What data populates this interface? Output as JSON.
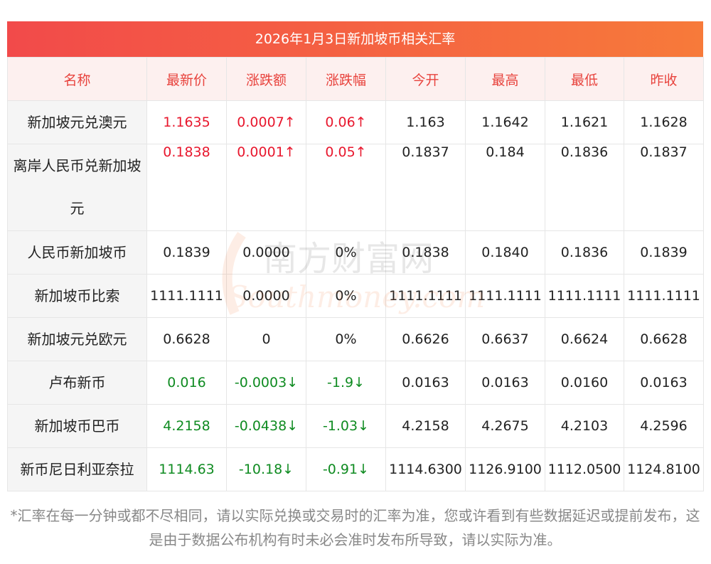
{
  "title": "2026年1月3日新加坡币相关汇率",
  "headers": [
    "名称",
    "最新价",
    "涨跌额",
    "涨跌幅",
    "今开",
    "最高",
    "最低",
    "昨收"
  ],
  "rows": [
    {
      "name": "新加坡元兑澳元",
      "latest": "1.1635",
      "change": "0.0007↑",
      "pct": "0.06↑",
      "open": "1.163",
      "high": "1.1642",
      "low": "1.1621",
      "prev": "1.1628",
      "dir": "up"
    },
    {
      "name": "离岸人民币兑新加坡元",
      "latest": "0.1838",
      "change": "0.0001↑",
      "pct": "0.05↑",
      "open": "0.1837",
      "high": "0.184",
      "low": "0.1836",
      "prev": "0.1837",
      "dir": "up"
    },
    {
      "name": "人民币新加坡币",
      "latest": "0.1839",
      "change": "0.0000",
      "pct": "0%",
      "open": "0.1838",
      "high": "0.1840",
      "low": "0.1836",
      "prev": "0.1839",
      "dir": "flat"
    },
    {
      "name": "新加坡币比索",
      "latest": "1111.1111",
      "change": "0.0000",
      "pct": "0%",
      "open": "1111.1111",
      "high": "1111.1111",
      "low": "1111.1111",
      "prev": "1111.1111",
      "dir": "flat"
    },
    {
      "name": "新加坡元兑欧元",
      "latest": "0.6628",
      "change": "0",
      "pct": "0%",
      "open": "0.6626",
      "high": "0.6637",
      "low": "0.6624",
      "prev": "0.6628",
      "dir": "flat"
    },
    {
      "name": "卢布新币",
      "latest": "0.016",
      "change": "-0.0003↓",
      "pct": "-1.9↓",
      "open": "0.0163",
      "high": "0.0163",
      "low": "0.0160",
      "prev": "0.0163",
      "dir": "down"
    },
    {
      "name": "新加坡币巴币",
      "latest": "4.2158",
      "change": "-0.0438↓",
      "pct": "-1.03↓",
      "open": "4.2158",
      "high": "4.2675",
      "low": "4.2103",
      "prev": "4.2596",
      "dir": "down"
    },
    {
      "name": "新币尼日利亚奈拉",
      "latest": "1114.63",
      "change": "-10.18↓",
      "pct": "-0.91↓",
      "open": "1114.6300",
      "high": "1126.9100",
      "low": "1112.0500",
      "prev": "1124.8100",
      "dir": "down"
    }
  ],
  "note": "*汇率在每一分钟或都不尽相同，请以实际兑换或交易时的汇率为准，您或许看到有些数据延迟或提前发布，这是由于数据公布机构有时未必会准时发布所导致，请以实际为准。",
  "watermark": {
    "cn": "南方财富网",
    "en": "Southmoney.com"
  },
  "colors": {
    "up": "#e8172d",
    "down": "#0f8b21",
    "header_text": "#e8433d",
    "title_gradient": [
      "#f24a4a",
      "#f77a3a"
    ]
  }
}
